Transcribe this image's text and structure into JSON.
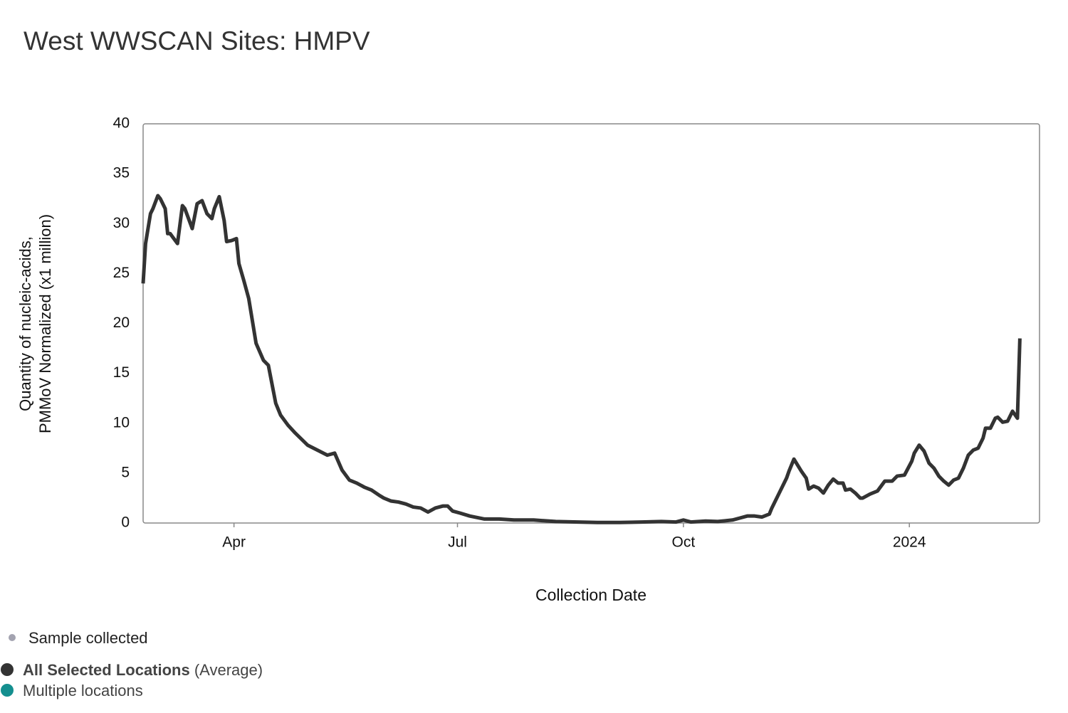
{
  "chart_data": {
    "type": "line",
    "title": "West WWSCAN Sites: HMPV",
    "y_label": [
      "Quantity of nucleic-acids,",
      "PMMoV Normalized (x1 million)"
    ],
    "x_label": "Collection Date",
    "x": [
      "2023-02-23",
      "2023-02-24",
      "2023-02-26",
      "2023-02-27",
      "2023-03-01",
      "2023-03-02",
      "2023-03-04",
      "2023-03-05",
      "2023-03-06",
      "2023-03-09",
      "2023-03-11",
      "2023-03-12",
      "2023-03-15",
      "2023-03-17",
      "2023-03-19",
      "2023-03-21",
      "2023-03-23",
      "2023-03-24",
      "2023-03-26",
      "2023-03-28",
      "2023-03-29",
      "2023-03-31",
      "2023-04-02",
      "2023-04-03",
      "2023-04-05",
      "2023-04-07",
      "2023-04-10",
      "2023-04-13",
      "2023-04-15",
      "2023-04-18",
      "2023-04-20",
      "2023-04-23",
      "2023-04-26",
      "2023-05-01",
      "2023-05-05",
      "2023-05-09",
      "2023-05-12",
      "2023-05-15",
      "2023-05-18",
      "2023-05-21",
      "2023-05-24",
      "2023-05-27",
      "2023-05-30",
      "2023-06-01",
      "2023-06-04",
      "2023-06-07",
      "2023-06-10",
      "2023-06-13",
      "2023-06-16",
      "2023-06-19",
      "2023-06-22",
      "2023-06-25",
      "2023-06-27",
      "2023-06-29",
      "2023-07-02",
      "2023-07-06",
      "2023-07-12",
      "2023-07-18",
      "2023-07-24",
      "2023-08-01",
      "2023-08-10",
      "2023-08-19",
      "2023-08-27",
      "2023-09-05",
      "2023-09-14",
      "2023-09-22",
      "2023-09-28",
      "2023-10-01",
      "2023-10-04",
      "2023-10-10",
      "2023-10-15",
      "2023-10-21",
      "2023-10-24",
      "2023-10-27",
      "2023-10-30",
      "2023-11-02",
      "2023-11-05",
      "2023-11-06",
      "2023-11-09",
      "2023-11-12",
      "2023-11-13",
      "2023-11-15",
      "2023-11-16",
      "2023-11-18",
      "2023-11-20",
      "2023-11-21",
      "2023-11-23",
      "2023-11-25",
      "2023-11-27",
      "2023-11-29",
      "2023-12-01",
      "2023-12-03",
      "2023-12-05",
      "2023-12-06",
      "2023-12-08",
      "2023-12-10",
      "2023-12-12",
      "2023-12-13",
      "2023-12-16",
      "2023-12-19",
      "2023-12-22",
      "2023-12-25",
      "2023-12-27",
      "2023-12-30",
      "2024-01-02",
      "2024-01-03",
      "2024-01-05",
      "2024-01-07",
      "2024-01-09",
      "2024-01-11",
      "2024-01-13",
      "2024-01-15",
      "2024-01-17",
      "2024-01-19",
      "2024-01-21",
      "2024-01-23",
      "2024-01-25",
      "2024-01-27",
      "2024-01-29",
      "2024-01-31",
      "2024-02-01",
      "2024-02-03",
      "2024-02-05",
      "2024-02-06",
      "2024-02-08",
      "2024-02-10",
      "2024-02-12",
      "2024-02-14",
      "2024-02-15"
    ],
    "series": [
      {
        "name": "All Selected Locations",
        "name_suffix": "(Average)",
        "color": "#333333",
        "values": [
          24,
          28,
          31,
          31.5,
          32.8,
          32.5,
          31.5,
          29,
          29,
          28,
          31.8,
          31.5,
          29.5,
          32,
          32.3,
          31,
          30.5,
          31.5,
          32.7,
          30.3,
          28.2,
          28.3,
          28.5,
          26,
          24.3,
          22.5,
          18,
          16.3,
          15.8,
          12,
          10.8,
          9.8,
          9,
          7.8,
          7.3,
          6.8,
          7,
          5.3,
          4.3,
          4,
          3.6,
          3.3,
          2.8,
          2.5,
          2.2,
          2.1,
          1.9,
          1.6,
          1.5,
          1.1,
          1.5,
          1.7,
          1.7,
          1.2,
          1,
          0.7,
          0.4,
          0.4,
          0.3,
          0.3,
          0.15,
          0.1,
          0.05,
          0.05,
          0.1,
          0.15,
          0.1,
          0.3,
          0.1,
          0.2,
          0.15,
          0.3,
          0.5,
          0.7,
          0.7,
          0.6,
          0.9,
          1.5,
          3,
          4.5,
          5.2,
          6.4,
          6,
          5.2,
          4.5,
          3.4,
          3.7,
          3.5,
          3,
          3.8,
          4.4,
          4,
          4,
          3.3,
          3.4,
          3,
          2.5,
          2.5,
          2.9,
          3.2,
          4.2,
          4.2,
          4.7,
          4.8,
          6.2,
          7,
          7.8,
          7.2,
          6,
          5.5,
          4.7,
          4.2,
          3.8,
          4.3,
          4.5,
          5.5,
          6.8,
          7.3,
          7.5,
          8.5,
          9.5,
          9.5,
          10.5,
          10.6,
          10.1,
          10.2,
          11.2,
          10.5,
          18.5
        ]
      }
    ],
    "legend_items": [
      {
        "name": "Sample collected",
        "color": "#a3a3b0"
      },
      {
        "name": "Multiple locations",
        "color": "#148f8f"
      }
    ],
    "xlim": [
      "2023-02-23",
      "2024-02-23"
    ],
    "xticks": [
      {
        "value": "2023-04-01",
        "label": "Apr"
      },
      {
        "value": "2023-07-01",
        "label": "Jul"
      },
      {
        "value": "2023-10-01",
        "label": "Oct"
      },
      {
        "value": "2024-01-01",
        "label": "2024"
      }
    ],
    "ylim": [
      0,
      40
    ],
    "yticks": [
      0,
      5,
      10,
      15,
      20,
      25,
      30,
      35,
      40
    ],
    "grid": false
  }
}
